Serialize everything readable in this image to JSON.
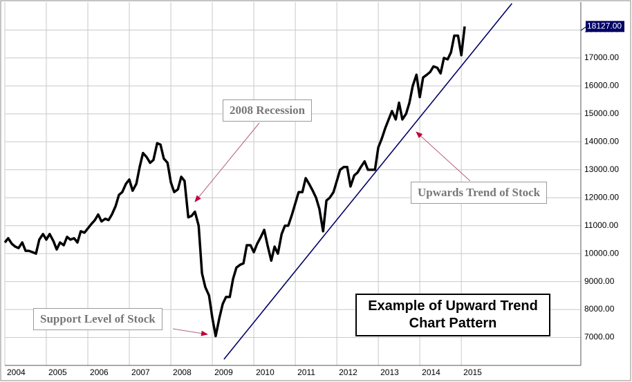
{
  "chart_data": {
    "type": "line",
    "title": "Example of Upward Trend Chart Pattern",
    "annotations": [
      "2008 Recession",
      "Support Level of Stock",
      "Upwards Trend of Stock"
    ],
    "xlim": [
      2004,
      2017.88
    ],
    "xticks": [
      2004,
      2005,
      2006,
      2007,
      2008,
      2009,
      2010,
      2011,
      2012,
      2013,
      2014,
      2015
    ],
    "ylim": [
      6000,
      19000
    ],
    "yticks": [
      {
        "value": 7000,
        "label": "7000.00"
      },
      {
        "value": 8000,
        "label": "8000.00"
      },
      {
        "value": 9000,
        "label": "9000.00"
      },
      {
        "value": 10000,
        "label": "10000.00"
      },
      {
        "value": 11000,
        "label": "11000.00"
      },
      {
        "value": 12000,
        "label": "12000.00"
      },
      {
        "value": 13000,
        "label": "13000.00"
      },
      {
        "value": 14000,
        "label": "14000.00"
      },
      {
        "value": 15000,
        "label": "15000.00"
      },
      {
        "value": 16000,
        "label": "16000.00"
      },
      {
        "value": 17000,
        "label": "17000.00"
      },
      {
        "value": 18000,
        "label": "18000.00"
      }
    ],
    "grid": true,
    "x": [
      2004.0,
      2004.08,
      2004.17,
      2004.25,
      2004.33,
      2004.42,
      2004.5,
      2004.58,
      2004.67,
      2004.75,
      2004.83,
      2004.92,
      2005.0,
      2005.08,
      2005.17,
      2005.25,
      2005.33,
      2005.42,
      2005.5,
      2005.58,
      2005.67,
      2005.75,
      2005.83,
      2005.92,
      2006.0,
      2006.08,
      2006.17,
      2006.25,
      2006.33,
      2006.42,
      2006.5,
      2006.58,
      2006.67,
      2006.75,
      2006.83,
      2006.92,
      2007.0,
      2007.08,
      2007.17,
      2007.25,
      2007.33,
      2007.42,
      2007.5,
      2007.58,
      2007.67,
      2007.75,
      2007.83,
      2007.92,
      2008.0,
      2008.08,
      2008.17,
      2008.25,
      2008.33,
      2008.42,
      2008.5,
      2008.58,
      2008.67,
      2008.75,
      2008.83,
      2008.92,
      2009.0,
      2009.08,
      2009.17,
      2009.25,
      2009.33,
      2009.42,
      2009.5,
      2009.58,
      2009.67,
      2009.75,
      2009.83,
      2009.92,
      2010.0,
      2010.08,
      2010.17,
      2010.25,
      2010.33,
      2010.42,
      2010.5,
      2010.58,
      2010.67,
      2010.75,
      2010.83,
      2010.92,
      2011.0,
      2011.08,
      2011.17,
      2011.25,
      2011.33,
      2011.42,
      2011.5,
      2011.58,
      2011.67,
      2011.75,
      2011.83,
      2011.92,
      2012.0,
      2012.08,
      2012.17,
      2012.25,
      2012.33,
      2012.42,
      2012.5,
      2012.58,
      2012.67,
      2012.75,
      2012.83,
      2012.92,
      2013.0,
      2013.08,
      2013.17,
      2013.25,
      2013.33,
      2013.42,
      2013.5,
      2013.58,
      2013.67,
      2013.75,
      2013.83,
      2013.92,
      2014.0,
      2014.08,
      2014.17,
      2014.25,
      2014.33,
      2014.42,
      2014.5,
      2014.58,
      2014.67,
      2014.75,
      2014.83,
      2014.92,
      2015.0,
      2015.08
    ],
    "series": [
      {
        "color": "#000000",
        "values": [
          10400,
          10550,
          10350,
          10250,
          10200,
          10400,
          10100,
          10100,
          10050,
          10000,
          10500,
          10700,
          10500,
          10700,
          10450,
          10150,
          10400,
          10300,
          10600,
          10500,
          10550,
          10400,
          10800,
          10750,
          10900,
          11050,
          11200,
          11400,
          11150,
          11250,
          11200,
          11400,
          11700,
          12100,
          12200,
          12500,
          12650,
          12250,
          12500,
          13100,
          13600,
          13450,
          13250,
          13350,
          13950,
          13900,
          13400,
          13250,
          12550,
          12200,
          12300,
          12750,
          12600,
          11300,
          11350,
          11500,
          11000,
          9300,
          8800,
          8500,
          7700,
          7050,
          7700,
          8200,
          8450,
          8450,
          9100,
          9500,
          9600,
          9650,
          10300,
          10300,
          10050,
          10350,
          10600,
          10850,
          10300,
          9750,
          10250,
          10000,
          10700,
          11000,
          11000,
          11400,
          11800,
          12200,
          12200,
          12700,
          12500,
          12250,
          12000,
          11600,
          10800,
          11900,
          12000,
          12200,
          12600,
          13000,
          13100,
          13100,
          12400,
          12800,
          12900,
          13100,
          13300,
          13000,
          13000,
          13000,
          13800,
          14100,
          14500,
          14800,
          15100,
          14800,
          15400,
          14800,
          15000,
          15400,
          16000,
          16400,
          15600,
          16300,
          16400,
          16500,
          16700,
          16650,
          16450,
          17000,
          16950,
          17200,
          17800,
          17800,
          17100,
          18127
        ]
      }
    ],
    "trendline": {
      "color": "#000066",
      "x": [
        2009.28,
        2016.22
      ],
      "y": [
        6220,
        18950
      ]
    },
    "last_value": 18127,
    "last_value_label": "18127.00"
  }
}
